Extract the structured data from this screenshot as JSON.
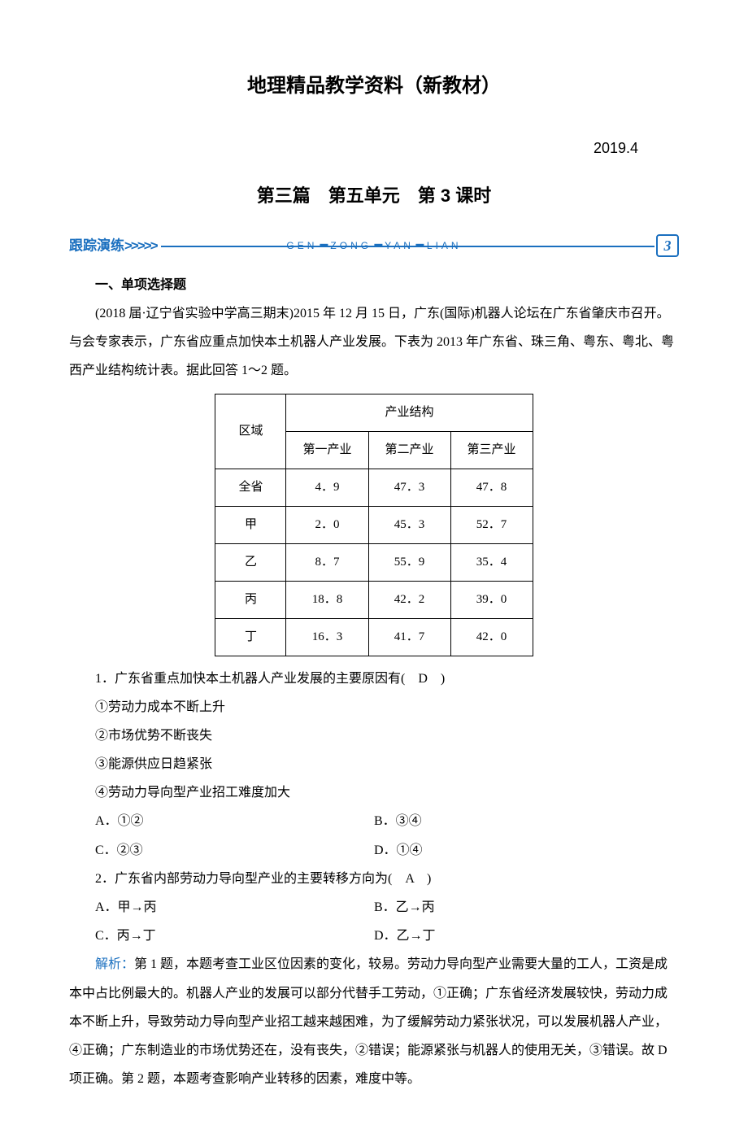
{
  "doc_title": "地理精品教学资料（新教材）",
  "date": "2019.4",
  "chapter": "第三篇　第五单元　第 3 课时",
  "tracking": {
    "label": "跟踪演练",
    "arrows": ">>>>>",
    "pinyin": [
      "GEN",
      "ZONG",
      "YAN",
      "LIAN"
    ],
    "num": "3"
  },
  "section_heading": "一、单项选择题",
  "intro": "(2018 届·辽宁省实验中学高三期末)2015 年 12 月 15 日，广东(国际)机器人论坛在广东省肇庆市召开。与会专家表示，广东省应重点加快本土机器人产业发展。下表为 2013 年广东省、珠三角、粤东、粤北、粤西产业结构统计表。据此回答 1～2 题。",
  "table": {
    "header_region": "区域",
    "header_struct": "产业结构",
    "cols": [
      "第一产业",
      "第二产业",
      "第三产业"
    ],
    "rows": [
      {
        "name": "全省",
        "v1": "4．9",
        "v2": "47．3",
        "v3": "47．8"
      },
      {
        "name": "甲",
        "v1": "2．0",
        "v2": "45．3",
        "v3": "52．7"
      },
      {
        "name": "乙",
        "v1": "8．7",
        "v2": "55．9",
        "v3": "35．4"
      },
      {
        "name": "丙",
        "v1": "18．8",
        "v2": "42．2",
        "v3": "39．0"
      },
      {
        "name": "丁",
        "v1": "16．3",
        "v2": "41．7",
        "v3": "42．0"
      }
    ]
  },
  "q1": {
    "stem": "1．广东省重点加快本土机器人产业发展的主要原因有(　D　)",
    "items": [
      "①劳动力成本不断上升",
      "②市场优势不断丧失",
      "③能源供应日趋紧张",
      "④劳动力导向型产业招工难度加大"
    ],
    "optA": "A．①②",
    "optB": "B．③④",
    "optC": "C．②③",
    "optD": "D．①④"
  },
  "q2": {
    "stem": "2．广东省内部劳动力导向型产业的主要转移方向为(　A　)",
    "optA": "A．甲→丙",
    "optB": "B．乙→丙",
    "optC": "C．丙→丁",
    "optD": "D．乙→丁"
  },
  "analysis": {
    "label": "解析：",
    "text": "第 1 题，本题考查工业区位因素的变化，较易。劳动力导向型产业需要大量的工人，工资是成本中占比例最大的。机器人产业的发展可以部分代替手工劳动，①正确；广东省经济发展较快，劳动力成本不断上升，导致劳动力导向型产业招工越来越困难，为了缓解劳动力紧张状况，可以发展机器人产业，④正确；广东制造业的市场优势还在，没有丧失，②错误；能源紧张与机器人的使用无关，③错误。故 D 项正确。第 2 题，本题考查影响产业转移的因素，难度中等。"
  },
  "colors": {
    "text": "#000000",
    "accent": "#1a6fbf",
    "background": "#ffffff"
  }
}
